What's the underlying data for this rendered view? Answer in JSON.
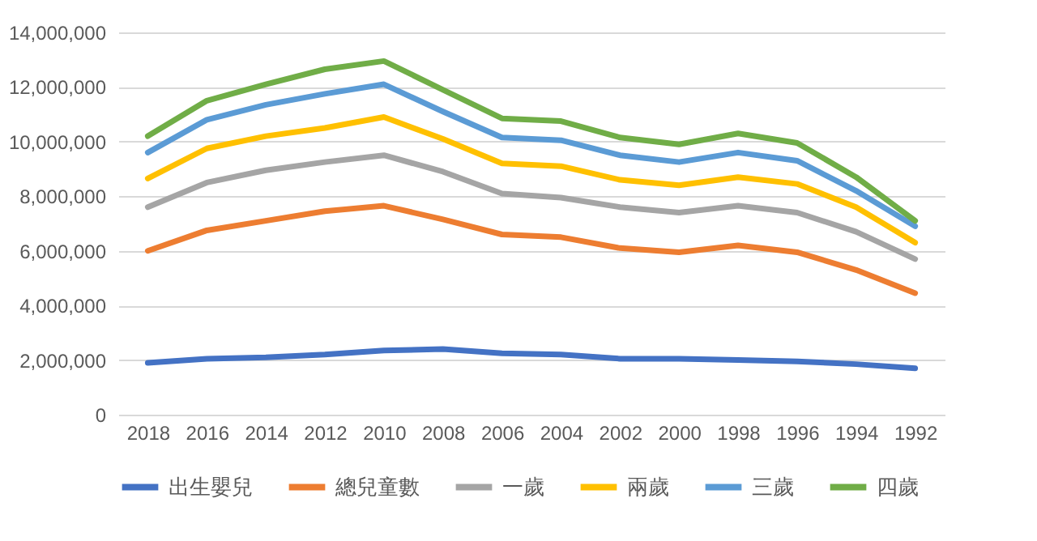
{
  "chart_data": {
    "type": "line",
    "categories": [
      "2018",
      "2016",
      "2014",
      "2012",
      "2010",
      "2008",
      "2006",
      "2004",
      "2002",
      "2000",
      "1998",
      "1996",
      "1994",
      "1992"
    ],
    "series": [
      {
        "name": "出生嬰兒",
        "color": "#4472c4",
        "values": [
          1900000,
          2050000,
          2100000,
          2200000,
          2350000,
          2400000,
          2250000,
          2200000,
          2050000,
          2050000,
          2000000,
          1950000,
          1850000,
          1700000
        ]
      },
      {
        "name": "總兒童數",
        "color": "#ed7d31",
        "values": [
          6000000,
          6750000,
          7100000,
          7450000,
          7650000,
          7150000,
          6600000,
          6500000,
          6100000,
          5950000,
          6200000,
          5950000,
          5300000,
          4450000
        ]
      },
      {
        "name": "一歲",
        "color": "#a5a5a5",
        "values": [
          7600000,
          8500000,
          8950000,
          9250000,
          9500000,
          8900000,
          8100000,
          7950000,
          7600000,
          7400000,
          7650000,
          7400000,
          6700000,
          5700000
        ]
      },
      {
        "name": "兩歲",
        "color": "#ffc000",
        "values": [
          8650000,
          9750000,
          10200000,
          10500000,
          10900000,
          10100000,
          9200000,
          9100000,
          8600000,
          8400000,
          8700000,
          8450000,
          7600000,
          6300000
        ]
      },
      {
        "name": "三歲",
        "color": "#5b9bd5",
        "values": [
          9600000,
          10800000,
          11350000,
          11750000,
          12100000,
          11100000,
          10150000,
          10050000,
          9500000,
          9250000,
          9600000,
          9300000,
          8200000,
          6900000
        ]
      },
      {
        "name": "四歲",
        "color": "#70ad47",
        "values": [
          10200000,
          11500000,
          12100000,
          12650000,
          12950000,
          11900000,
          10850000,
          10750000,
          10150000,
          9900000,
          10300000,
          9950000,
          8700000,
          7100000
        ]
      }
    ],
    "ylim": [
      0,
      14000000
    ],
    "yticks": [
      {
        "value": 0,
        "label": "0"
      },
      {
        "value": 2000000,
        "label": "2,000,000"
      },
      {
        "value": 4000000,
        "label": "4,000,000"
      },
      {
        "value": 6000000,
        "label": "6,000,000"
      },
      {
        "value": 8000000,
        "label": "8,000,000"
      },
      {
        "value": 10000000,
        "label": "10,000,000"
      },
      {
        "value": 12000000,
        "label": "12,000,000"
      },
      {
        "value": 14000000,
        "label": "14,000,000"
      }
    ],
    "grid": "y",
    "legend": "bottom",
    "marker": "none",
    "line_style": "solid"
  }
}
